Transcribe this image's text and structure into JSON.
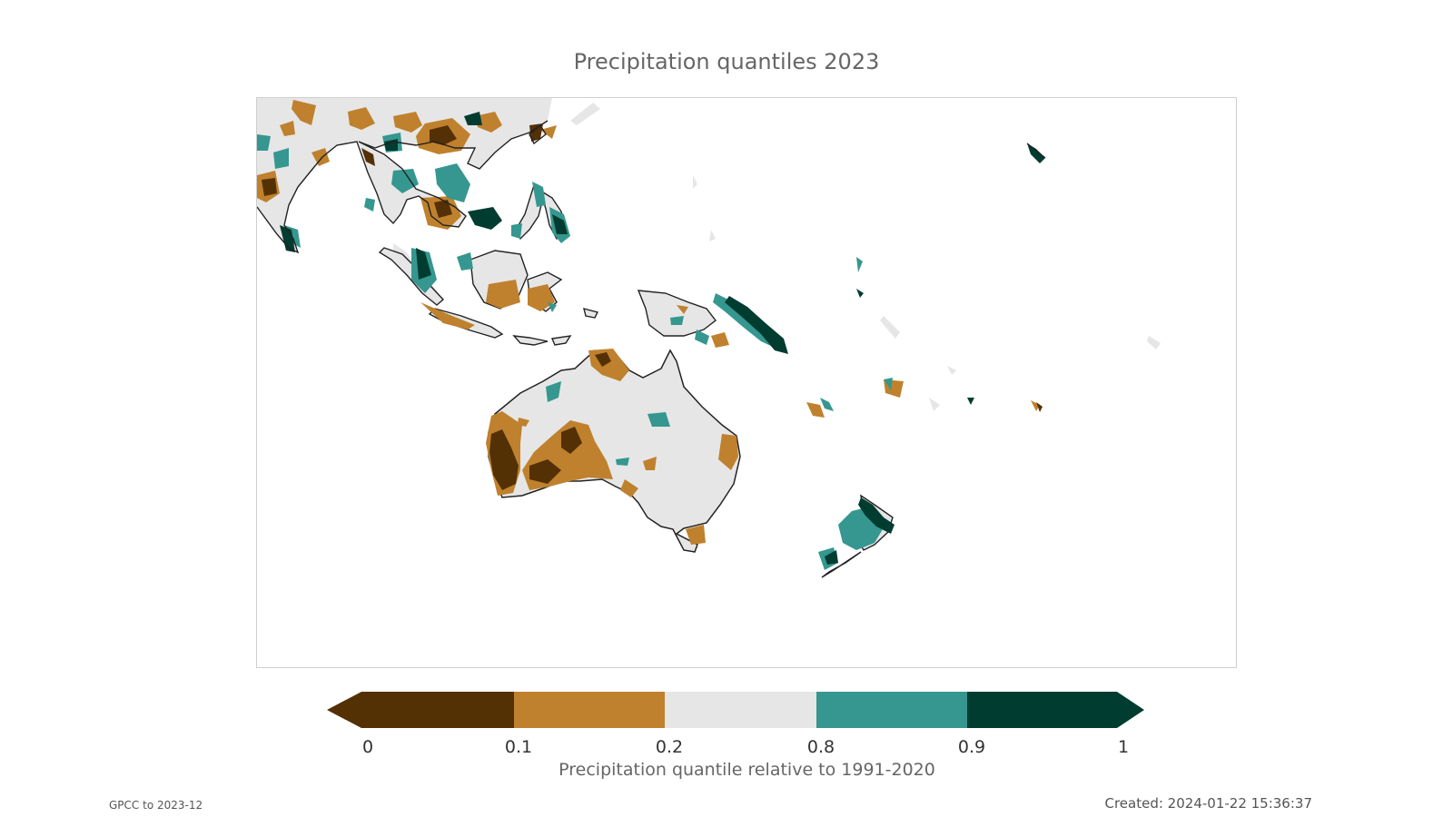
{
  "title": "Precipitation quantiles 2023",
  "legend": {
    "colors": [
      "#543005",
      "#bf812d",
      "#e6e6e6",
      "#35978f",
      "#003c30"
    ],
    "ticks": [
      "0",
      "0.1",
      "0.2",
      "0.8",
      "0.9",
      "1"
    ],
    "label": "Precipitation quantile relative to 1991-2020"
  },
  "footer": {
    "source": "GPCC to 2023-12",
    "created": "Created: 2024-01-22 15:36:37"
  }
}
